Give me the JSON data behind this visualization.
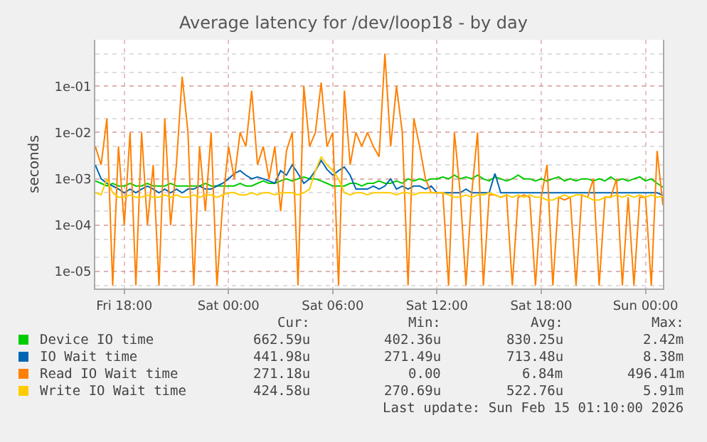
{
  "chart_data": {
    "type": "line",
    "title": "Average latency for /dev/loop18 - by day",
    "ylabel": "seconds",
    "x": [
      "2026-02-13T16:20",
      "2026-02-13T16:40",
      "2026-02-13T17:00",
      "2026-02-13T17:20",
      "2026-02-13T17:40",
      "2026-02-13T18:00",
      "2026-02-13T18:20",
      "2026-02-13T18:40",
      "2026-02-13T19:00",
      "2026-02-13T19:20",
      "2026-02-13T19:40",
      "2026-02-13T20:00",
      "2026-02-13T20:20",
      "2026-02-13T20:40",
      "2026-02-13T21:00",
      "2026-02-13T21:20",
      "2026-02-13T21:40",
      "2026-02-13T22:00",
      "2026-02-13T22:20",
      "2026-02-13T22:40",
      "2026-02-13T23:00",
      "2026-02-13T23:20",
      "2026-02-13T23:40",
      "2026-02-14T00:00",
      "2026-02-14T00:20",
      "2026-02-14T00:40",
      "2026-02-14T01:00",
      "2026-02-14T01:20",
      "2026-02-14T01:40",
      "2026-02-14T02:00",
      "2026-02-14T02:20",
      "2026-02-14T02:40",
      "2026-02-14T03:00",
      "2026-02-14T03:20",
      "2026-02-14T03:40",
      "2026-02-14T04:00",
      "2026-02-14T04:20",
      "2026-02-14T04:40",
      "2026-02-14T05:00",
      "2026-02-14T05:20",
      "2026-02-14T05:40",
      "2026-02-14T06:00",
      "2026-02-14T06:20",
      "2026-02-14T06:40",
      "2026-02-14T07:00",
      "2026-02-14T07:20",
      "2026-02-14T07:40",
      "2026-02-14T08:00",
      "2026-02-14T08:20",
      "2026-02-14T08:40",
      "2026-02-14T09:00",
      "2026-02-14T09:20",
      "2026-02-14T09:40",
      "2026-02-14T10:00",
      "2026-02-14T10:20",
      "2026-02-14T10:40",
      "2026-02-14T11:00",
      "2026-02-14T11:20",
      "2026-02-14T11:40",
      "2026-02-14T12:00",
      "2026-02-14T12:20",
      "2026-02-14T12:40",
      "2026-02-14T13:00",
      "2026-02-14T13:20",
      "2026-02-14T13:40",
      "2026-02-14T14:00",
      "2026-02-14T14:20",
      "2026-02-14T14:40",
      "2026-02-14T15:00",
      "2026-02-14T15:20",
      "2026-02-14T15:40",
      "2026-02-14T16:00",
      "2026-02-14T16:20",
      "2026-02-14T16:40",
      "2026-02-14T17:00",
      "2026-02-14T17:20",
      "2026-02-14T17:40",
      "2026-02-14T18:00",
      "2026-02-14T18:20",
      "2026-02-14T18:40",
      "2026-02-14T19:00",
      "2026-02-14T19:20",
      "2026-02-14T19:40",
      "2026-02-14T20:00",
      "2026-02-14T20:20",
      "2026-02-14T20:40",
      "2026-02-14T21:00",
      "2026-02-14T21:20",
      "2026-02-14T21:40",
      "2026-02-14T22:00",
      "2026-02-14T22:20",
      "2026-02-14T22:40",
      "2026-02-14T23:00",
      "2026-02-14T23:20",
      "2026-02-14T23:40",
      "2026-02-15T00:00",
      "2026-02-15T00:20",
      "2026-02-15T00:40",
      "2026-02-15T01:00"
    ],
    "series": [
      {
        "name": "Device IO time",
        "color": "#00cc00",
        "values": [
          0.0009,
          0.0008,
          0.0007,
          0.0008,
          0.0007,
          0.0007,
          0.0008,
          0.0007,
          0.0007,
          0.0008,
          0.0007,
          0.0007,
          0.0007,
          0.0008,
          0.0007,
          0.0007,
          0.0007,
          0.0007,
          0.0007,
          0.0008,
          0.0007,
          0.0007,
          0.0007,
          0.0007,
          0.0007,
          0.0008,
          0.0007,
          0.0007,
          0.0008,
          0.0009,
          0.0008,
          0.0008,
          0.0009,
          0.001,
          0.0009,
          0.001,
          0.0011,
          0.001,
          0.001,
          0.0009,
          0.0008,
          0.0007,
          0.0007,
          0.0007,
          0.0008,
          0.0008,
          0.0007,
          0.0008,
          0.0008,
          0.0009,
          0.0008,
          0.0008,
          0.0009,
          0.0008,
          0.001,
          0.0009,
          0.001,
          0.0009,
          0.001,
          0.001,
          0.0011,
          0.001,
          0.0012,
          0.001,
          0.0011,
          0.001,
          0.0012,
          0.001,
          0.0009,
          0.0011,
          0.001,
          0.0009,
          0.001,
          0.0012,
          0.001,
          0.001,
          0.0009,
          0.001,
          0.0009,
          0.001,
          0.0011,
          0.0009,
          0.001,
          0.0009,
          0.001,
          0.001,
          0.0009,
          0.001,
          0.0009,
          0.0011,
          0.0009,
          0.001,
          0.0009,
          0.001,
          0.0011,
          0.0009,
          0.001,
          0.0008,
          0.00066
        ]
      },
      {
        "name": "IO Wait time",
        "color": "#0066b3",
        "values": [
          0.002,
          0.001,
          0.0008,
          0.0007,
          0.0006,
          0.0005,
          0.0006,
          0.0005,
          0.0006,
          0.0007,
          0.0006,
          0.0005,
          0.0006,
          0.0005,
          0.0006,
          0.0005,
          0.0006,
          0.0006,
          0.0007,
          0.0006,
          0.0006,
          0.0007,
          0.0008,
          0.001,
          0.0013,
          0.0015,
          0.0012,
          0.001,
          0.0011,
          0.001,
          0.0009,
          0.0008,
          0.0015,
          0.0012,
          0.002,
          0.0013,
          0.0008,
          0.001,
          0.0015,
          0.0025,
          0.0016,
          0.0012,
          0.0015,
          0.0018,
          0.0012,
          0.0006,
          0.0006,
          0.0006,
          0.0007,
          0.0006,
          0.0007,
          0.001,
          0.0006,
          0.0007,
          0.0006,
          0.0007,
          0.0007,
          0.0006,
          0.0007,
          0.0005,
          0.0005,
          0.0005,
          0.0005,
          0.0005,
          0.0006,
          0.0005,
          0.0005,
          0.0005,
          0.0005,
          0.0013,
          0.0005,
          0.0005,
          0.0005,
          0.0005,
          0.0005,
          0.0005,
          0.0005,
          0.0005,
          0.0005,
          0.0005,
          0.0005,
          0.0005,
          0.0005,
          0.0005,
          0.0005,
          0.0005,
          0.0005,
          0.0005,
          0.0005,
          0.0005,
          0.0005,
          0.0005,
          0.0005,
          0.0005,
          0.0005,
          0.0005,
          0.0005,
          0.0005,
          0.00044
        ]
      },
      {
        "name": "Read IO Wait time",
        "color": "#ff8000",
        "values": [
          0.005,
          0.002,
          0.02,
          5e-06,
          0.005,
          0.0001,
          0.01,
          5e-06,
          0.01,
          0.0001,
          0.002,
          5e-06,
          0.02,
          0.0001,
          0.002,
          0.16,
          0.01,
          5e-06,
          0.005,
          0.0002,
          0.01,
          5e-06,
          0.0003,
          0.005,
          0.001,
          0.01,
          0.005,
          0.08,
          0.002,
          0.005,
          0.001,
          0.005,
          0.0002,
          0.004,
          0.01,
          5e-06,
          0.1,
          0.005,
          0.01,
          0.12,
          0.005,
          0.01,
          5e-06,
          0.08,
          0.002,
          0.01,
          0.005,
          0.01,
          0.005,
          0.003,
          0.5,
          0.005,
          0.1,
          0.01,
          5e-06,
          0.02,
          0.005,
          0.001,
          0.0005,
          0.0005,
          0.0005,
          5e-06,
          0.01,
          0.0005,
          5e-06,
          0.0005,
          0.01,
          5e-06,
          0.00045,
          0.00045,
          0.0004,
          0.00045,
          5e-06,
          0.0004,
          0.00045,
          0.0004,
          5e-06,
          0.0004,
          0.002,
          5e-06,
          0.0004,
          0.00035,
          0.0004,
          5e-06,
          0.00045,
          0.0004,
          0.001,
          5e-06,
          0.0004,
          0.0004,
          0.001,
          5e-06,
          0.0004,
          5e-06,
          0.0004,
          0.0004,
          5e-06,
          0.004,
          0.00027
        ]
      },
      {
        "name": "Write IO Wait time",
        "color": "#ffcc00",
        "values": [
          0.0005,
          0.00045,
          0.001,
          0.0005,
          0.0004,
          0.0004,
          0.00045,
          0.0004,
          0.0004,
          0.00045,
          0.0004,
          0.0004,
          0.00045,
          0.0004,
          0.00045,
          0.0004,
          0.0004,
          0.00045,
          0.0004,
          0.00045,
          0.00045,
          0.0004,
          0.00045,
          0.0005,
          0.0005,
          0.00045,
          0.00045,
          0.0005,
          0.00045,
          0.0005,
          0.0005,
          0.00045,
          0.0005,
          0.0005,
          0.0005,
          0.00045,
          0.0005,
          0.0006,
          0.0015,
          0.003,
          0.002,
          0.0015,
          0.001,
          0.0005,
          0.00045,
          0.0005,
          0.0005,
          0.00045,
          0.0005,
          0.0005,
          0.0005,
          0.0005,
          0.00045,
          0.0005,
          0.0005,
          0.00045,
          0.0005,
          0.0005,
          0.0005,
          0.0005,
          0.0005,
          0.00045,
          0.0004,
          0.0004,
          0.00045,
          0.0004,
          0.00045,
          0.00045,
          0.0005,
          0.00045,
          0.0004,
          0.00045,
          0.0004,
          0.00045,
          0.0004,
          0.00045,
          0.0004,
          0.0004,
          0.00035,
          0.00035,
          0.0004,
          0.00045,
          0.0004,
          0.00045,
          0.00045,
          0.0004,
          0.00035,
          0.00035,
          0.0004,
          0.0004,
          0.00045,
          0.0004,
          0.00045,
          0.0004,
          0.00045,
          0.0004,
          0.00045,
          0.0004,
          0.00042
        ]
      }
    ],
    "log": "y",
    "ylim": [
      4.3e-06,
      1.0
    ],
    "yticks": [
      {
        "value": 1e-05,
        "label": "1e-05"
      },
      {
        "value": 0.0001,
        "label": "1e-04"
      },
      {
        "value": 0.001,
        "label": "1e-03"
      },
      {
        "value": 0.01,
        "label": "1e-02"
      },
      {
        "value": 0.1,
        "label": "1e-01"
      }
    ],
    "xlim": [
      "2026-02-13T16:20",
      "2026-02-15T01:00"
    ],
    "xticks": [
      {
        "value": "2026-02-13T18:00",
        "label": "Fri 18:00"
      },
      {
        "value": "2026-02-14T00:00",
        "label": "Sat 00:00"
      },
      {
        "value": "2026-02-14T06:00",
        "label": "Sat 06:00"
      },
      {
        "value": "2026-02-14T12:00",
        "label": "Sat 12:00"
      },
      {
        "value": "2026-02-14T18:00",
        "label": "Sat 18:00"
      },
      {
        "value": "2026-02-15T00:00",
        "label": "Sun 00:00"
      }
    ],
    "grid": true,
    "legend": "bottom",
    "marker": "none",
    "line_style": "solid",
    "annotations": [
      "Cur:",
      "Min:",
      "Avg:",
      "Max:",
      "662.59u",
      "402.36u",
      "830.25u",
      "2.42m",
      "441.98u",
      "271.49u",
      "713.48u",
      "8.38m",
      "271.18u",
      "0.00",
      "6.84m",
      "496.41m",
      "424.58u",
      "270.69u",
      "522.76u",
      "5.91m",
      "Last update: Sun Feb 15 01:10:00 2026"
    ]
  }
}
